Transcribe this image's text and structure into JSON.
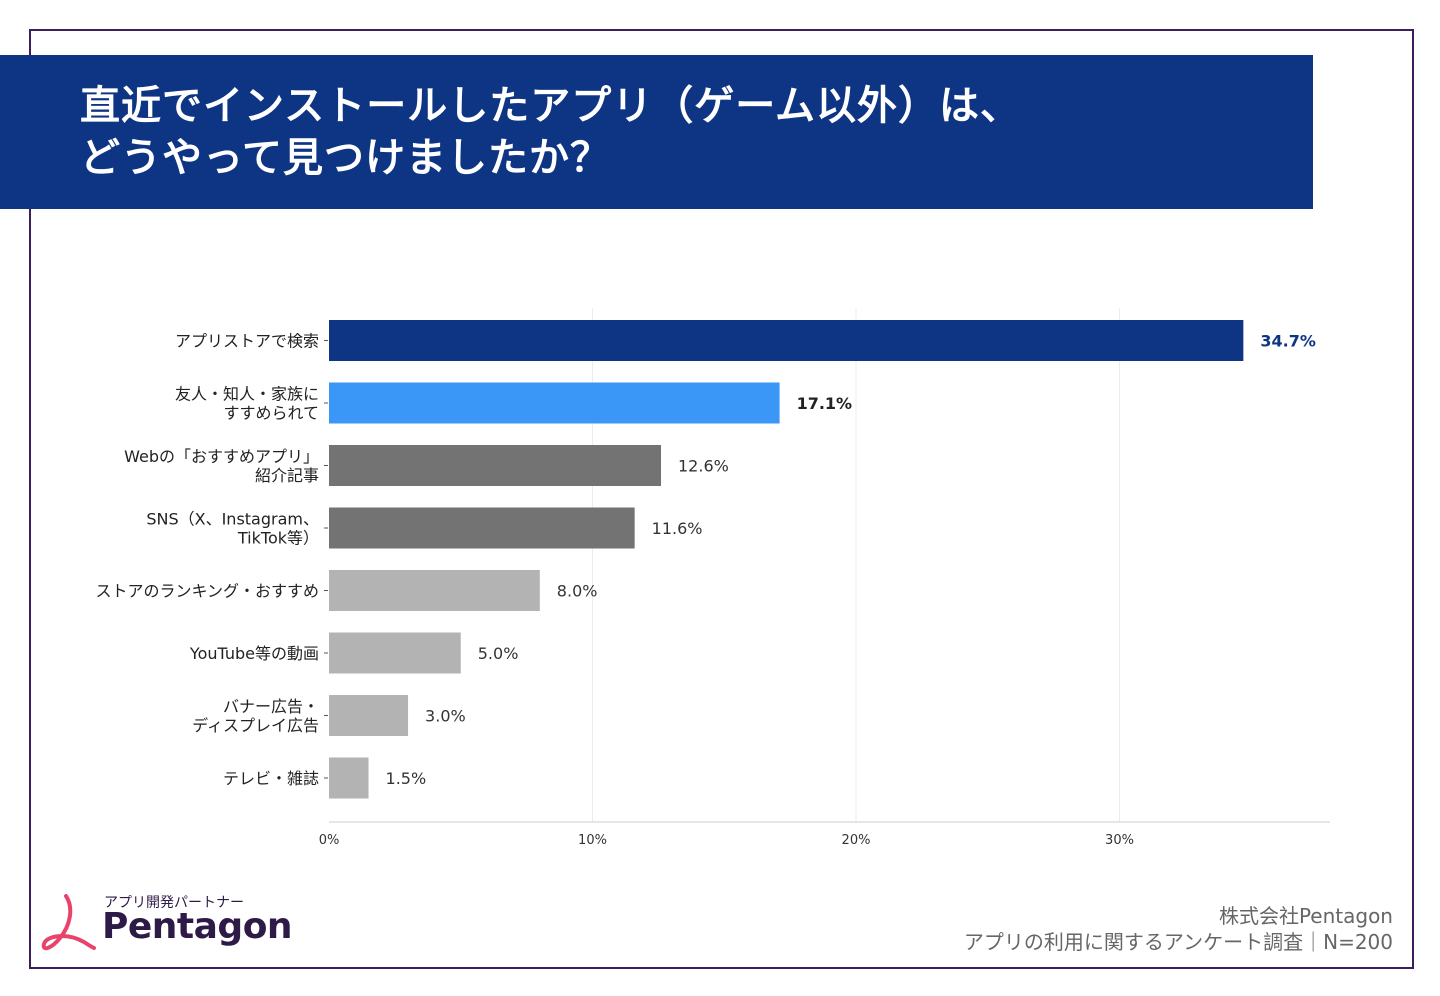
{
  "header": {
    "title_line1": "直近でインストールしたアプリ（ゲーム以外）は、",
    "title_line2": "どうやって見つけましたか？"
  },
  "chart_data": {
    "type": "bar",
    "orientation": "horizontal",
    "categories": [
      [
        "アプリストアで検索"
      ],
      [
        "友人・知人・家族に",
        "すすめられて"
      ],
      [
        "Webの「おすすめアプリ」",
        "紹介記事"
      ],
      [
        "SNS（X、Instagram、",
        "TikTok等）"
      ],
      [
        "ストアのランキング・おすすめ"
      ],
      [
        "YouTube等の動画"
      ],
      [
        "バナー広告・",
        "ディスプレイ広告"
      ],
      [
        "テレビ・雑誌"
      ]
    ],
    "values": [
      34.7,
      17.1,
      12.6,
      11.6,
      8.0,
      5.0,
      3.0,
      1.5
    ],
    "value_labels": [
      "34.7%",
      "17.1%",
      "12.6%",
      "11.6%",
      "8.0%",
      "5.0%",
      "3.0%",
      "1.5%"
    ],
    "bar_colors": [
      "#0e3584",
      "#3a97f7",
      "#737373",
      "#737373",
      "#b3b3b3",
      "#b3b3b3",
      "#b3b3b3",
      "#b3b3b3"
    ],
    "label_colors": [
      "#0e3584",
      "#222222",
      "#333333",
      "#333333",
      "#333333",
      "#333333",
      "#333333",
      "#333333"
    ],
    "label_bold": [
      true,
      true,
      false,
      false,
      false,
      false,
      false,
      false
    ],
    "x_ticks": [
      0,
      10,
      20,
      30
    ],
    "x_tick_labels": [
      "0%",
      "10%",
      "20%",
      "30%"
    ],
    "xlim": [
      0,
      38
    ],
    "grid": true,
    "xlabel": "",
    "ylabel": ""
  },
  "logo": {
    "tagline": "アプリ開発パートナー",
    "name": "Pentagon",
    "accent_color": "#e8436b"
  },
  "footer": {
    "company": "株式会社Pentagon",
    "survey": "アプリの利用に関するアンケート調査｜N=200"
  }
}
